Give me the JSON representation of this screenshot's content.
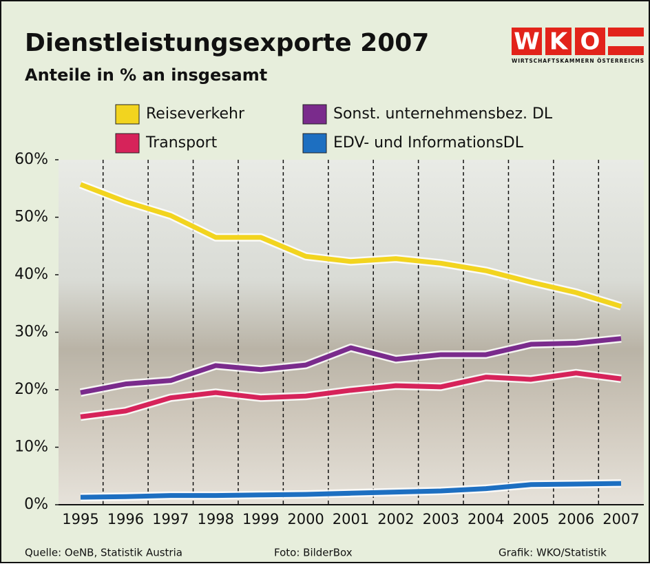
{
  "chart_data": {
    "type": "line",
    "title": "Dienstleistungsexporte 2007",
    "subtitle": "Anteile in % an insgesamt",
    "logo": {
      "letters": [
        "W",
        "K",
        "O"
      ],
      "text": "WIRTSCHAFTSKAMMERN ÖSTERREICHS"
    },
    "categories": [
      "1995",
      "1996",
      "1997",
      "1998",
      "1999",
      "2000",
      "2001",
      "2002",
      "2003",
      "2004",
      "2005",
      "2006",
      "2007"
    ],
    "series": [
      {
        "name": "Reiseverkehr",
        "color": "#f2d41f",
        "values": [
          55.7,
          52.7,
          50.3,
          46.5,
          46.5,
          43.2,
          42.3,
          42.8,
          42.0,
          40.7,
          38.7,
          36.9,
          34.5
        ]
      },
      {
        "name": "Transport",
        "color": "#d6235a",
        "values": [
          15.3,
          16.3,
          18.6,
          19.5,
          18.6,
          18.9,
          19.9,
          20.7,
          20.5,
          22.2,
          21.8,
          22.9,
          21.9
        ]
      },
      {
        "name": "Sonst. unternehmensbez. DL",
        "color": "#7a2b8c",
        "values": [
          19.5,
          21.0,
          21.6,
          24.2,
          23.5,
          24.3,
          27.3,
          25.3,
          26.1,
          26.1,
          27.9,
          28.1,
          28.9
        ]
      },
      {
        "name": "EDV- und InformationsDL",
        "color": "#1d6fc1",
        "values": [
          1.3,
          1.4,
          1.6,
          1.6,
          1.7,
          1.8,
          2.0,
          2.2,
          2.4,
          2.8,
          3.5,
          3.6,
          3.7
        ]
      }
    ],
    "ylim": [
      0,
      60
    ],
    "yticks": [
      {
        "value": 0,
        "label": "0%"
      },
      {
        "value": 10,
        "label": "10%"
      },
      {
        "value": 20,
        "label": "20%"
      },
      {
        "value": 30,
        "label": "30%"
      },
      {
        "value": 40,
        "label": "40%"
      },
      {
        "value": 50,
        "label": "50%"
      },
      {
        "value": 60,
        "label": "60%"
      }
    ],
    "footer": {
      "source": "Quelle: OeNB, Statistik Austria",
      "photo": "Foto: BilderBox",
      "graphic": "Grafik: WKO/Statistik"
    }
  }
}
